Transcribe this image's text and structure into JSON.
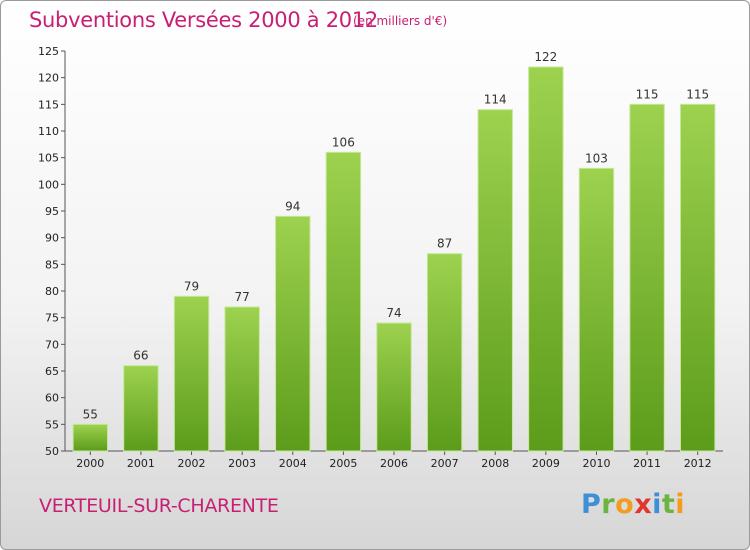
{
  "title": "Subventions Versées 2000 à 2012",
  "subtitle": "(en milliers d'€)",
  "commune": "VERTEUIL-SUR-CHARENTE",
  "logo": {
    "letters": [
      "P",
      "r",
      "o",
      "x",
      "i",
      "t",
      "i"
    ],
    "colors": [
      "#3d8fd6",
      "#6cb33f",
      "#f39c1f",
      "#e2362c",
      "#3d8fd6",
      "#6cb33f",
      "#f39c1f"
    ]
  },
  "colors": {
    "accent": "#c81f74",
    "bar_light": "#9dd24f",
    "bar_dark": "#5c9c1b"
  },
  "chart_data": {
    "type": "bar",
    "title": "Subventions Versées 2000 à 2012",
    "categories": [
      "2000",
      "2001",
      "2002",
      "2003",
      "2004",
      "2005",
      "2006",
      "2007",
      "2008",
      "2009",
      "2010",
      "2011",
      "2012"
    ],
    "values": [
      55,
      66,
      79,
      77,
      94,
      106,
      74,
      87,
      114,
      122,
      103,
      115,
      115
    ],
    "ylim": [
      50,
      125
    ],
    "yticks": [
      50,
      55,
      60,
      65,
      70,
      75,
      80,
      85,
      90,
      95,
      100,
      105,
      110,
      115,
      120,
      125
    ],
    "grid": false,
    "data_labels": true
  }
}
